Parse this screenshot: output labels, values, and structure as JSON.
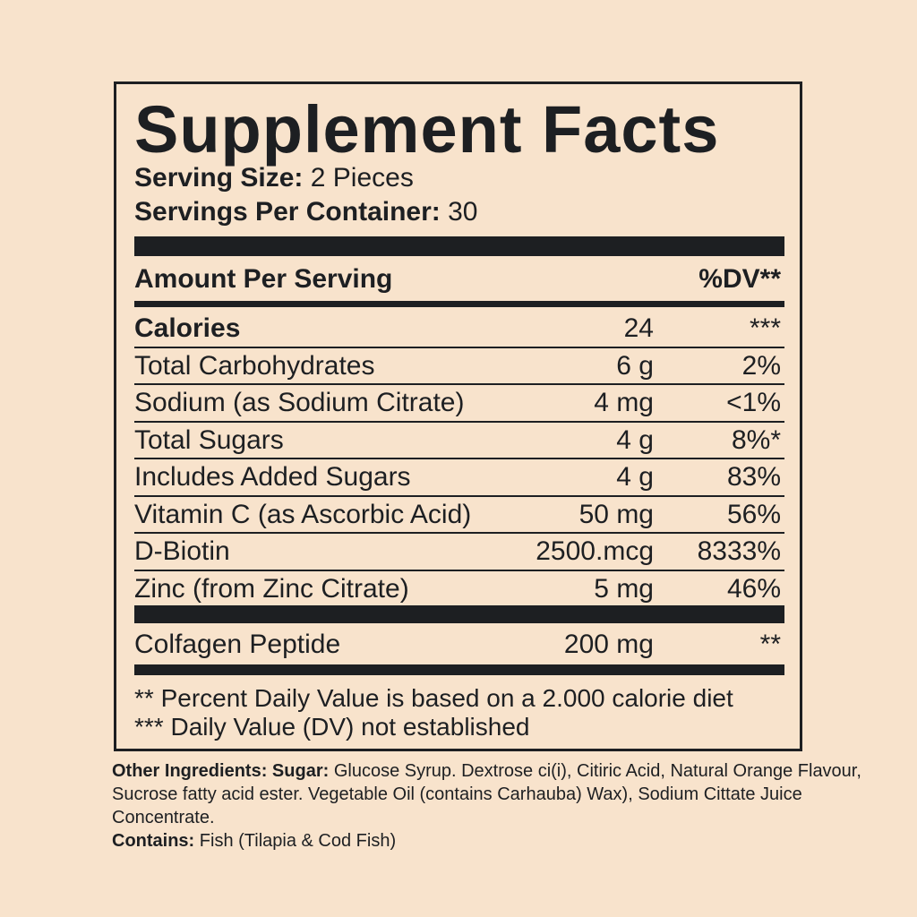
{
  "label": {
    "title": "Supplement Facts",
    "serving_size": {
      "label": "Serving Size:",
      "value": "2 Pieces"
    },
    "servings_per_container": {
      "label": "Servings Per Container:",
      "value": "30"
    },
    "header": {
      "amount": "Amount Per Serving",
      "dv": "%DV**"
    },
    "rows": [
      {
        "name": "Calories",
        "amount": "24",
        "dv": "***"
      },
      {
        "name": "Total Carbohydrates",
        "amount": "6 g",
        "dv": "2%"
      },
      {
        "name": "Sodium (as Sodium Citrate)",
        "amount": "4 mg",
        "dv": "<1%"
      },
      {
        "name": "Total Sugars",
        "amount": "4 g",
        "dv": "8%*"
      },
      {
        "name": "Includes Added Sugars",
        "amount": "4 g",
        "dv": "83%"
      },
      {
        "name": "Vitamin C (as Ascorbic Acid)",
        "amount": "50 mg",
        "dv": "56%"
      },
      {
        "name": "D-Biotin",
        "amount": "2500.mcg",
        "dv": "8333%"
      },
      {
        "name": "Zinc (from Zinc Citrate)",
        "amount": "5 mg",
        "dv": "46%"
      }
    ],
    "extra_rows": [
      {
        "name": "Colfagen Peptide",
        "amount": "200 mg",
        "dv": "**"
      }
    ],
    "footnotes": [
      "** Percent Daily Value is based on a 2.000 calorie diet",
      "*** Daily Value (DV) not established"
    ]
  },
  "ingredients": {
    "label": "Other Ingredients:",
    "sugar_label": "Sugar:",
    "text": "Glucose Syrup. Dextrose ci(i), Citiric Acid, Natural Orange Flavour, Sucrose fatty acid ester. Vegetable Oil (contains Carhauba) Wax), Sodium Cittate Juice Concentrate.",
    "contains_label": "Contains:",
    "contains": "Fish (Tilapia & Cod Fish)"
  }
}
